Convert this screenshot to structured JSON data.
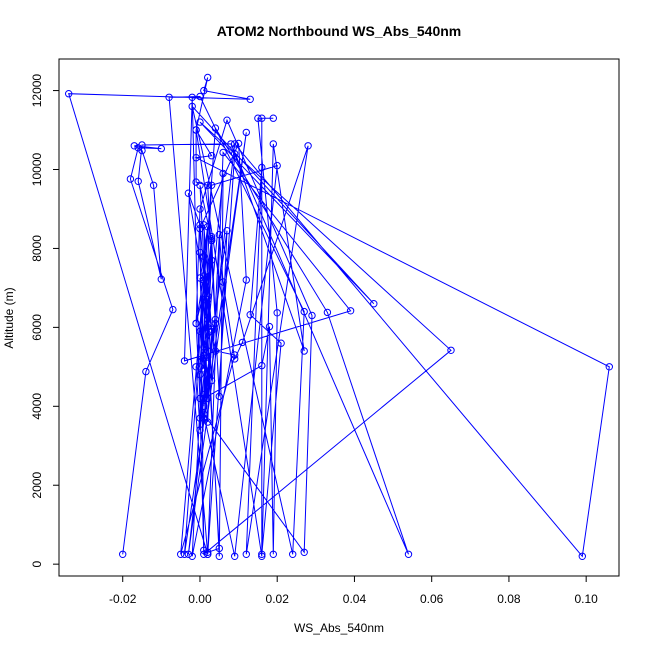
{
  "chart_data": {
    "type": "line",
    "title": "ATOM2 Northbound WS_Abs_540nm",
    "xlabel": "WS_Abs_540nm",
    "ylabel": "Altitude (m)",
    "xlim": [
      -0.0365,
      0.1085
    ],
    "ylim": [
      -300,
      12800
    ],
    "x_ticks": [
      -0.02,
      0.0,
      0.02,
      0.04,
      0.06,
      0.08,
      0.1
    ],
    "x_tick_labels": [
      "-0.02",
      "0.00",
      "0.02",
      "0.04",
      "0.06",
      "0.08",
      "0.10"
    ],
    "y_ticks": [
      0,
      2000,
      4000,
      6000,
      8000,
      10000,
      12000
    ],
    "y_tick_labels": [
      "0",
      "2000",
      "4000",
      "6000",
      "8000",
      "10000",
      "12000"
    ],
    "grid": false,
    "legend": "none",
    "color": "#0000ff",
    "series": [
      {
        "points": [
          [
            -0.02,
            250
          ],
          [
            -0.014,
            4880
          ],
          [
            -0.007,
            6450
          ],
          [
            -0.018,
            9760
          ],
          [
            -0.016,
            10550
          ],
          [
            -0.01,
            10530
          ],
          [
            -0.017,
            10600
          ],
          [
            -0.015,
            10480
          ],
          [
            -0.012,
            9600
          ],
          [
            -0.01,
            7220
          ],
          [
            -0.016,
            9700
          ],
          [
            -0.015,
            10620
          ],
          [
            0.008,
            10650
          ],
          [
            0.054,
            250
          ],
          [
            0.033,
            6380
          ],
          [
            0.004,
            11050
          ],
          [
            -0.004,
            250
          ],
          [
            0.012,
            10940
          ],
          [
            -0.003,
            250
          ],
          [
            0.009,
            10650
          ],
          [
            0.099,
            200
          ],
          [
            0.106,
            5000
          ],
          [
            -0.001,
            10300
          ],
          [
            0.003,
            10350
          ],
          [
            -0.001,
            11000
          ],
          [
            0.016,
            200
          ],
          [
            0.019,
            10650
          ],
          [
            0.027,
            5400
          ],
          [
            0.009,
            10400
          ],
          [
            0.002,
            250
          ],
          [
            0.006,
            10430
          ],
          [
            0.039,
            6420
          ],
          [
            -0.004,
            5150
          ],
          [
            -0.002,
            11830
          ],
          [
            0.001,
            250
          ],
          [
            0.065,
            5420
          ],
          [
            0.0,
            11200
          ],
          [
            0.045,
            6600
          ],
          [
            -0.002,
            11600
          ],
          [
            0.024,
            250
          ],
          [
            0.027,
            6400
          ],
          [
            0.0,
            11850
          ],
          [
            -0.008,
            11830
          ],
          [
            0.002,
            250
          ],
          [
            -0.034,
            11920
          ],
          [
            0.013,
            11780
          ],
          [
            0.001,
            12000
          ],
          [
            0.002,
            12330
          ],
          [
            -0.001,
            11000
          ],
          [
            -0.001,
            9680
          ],
          [
            0.002,
            9600
          ],
          [
            0.005,
            4250
          ],
          [
            0.007,
            8450
          ],
          [
            0.001,
            4200
          ],
          [
            0.016,
            5030
          ],
          [
            0.018,
            6020
          ],
          [
            0.019,
            250
          ],
          [
            0.02,
            6370
          ],
          [
            0.015,
            11300
          ],
          [
            0.019,
            11300
          ],
          [
            0.016,
            11300
          ],
          [
            0.016,
            250
          ],
          [
            0.021,
            5600
          ],
          [
            0.013,
            6320
          ],
          [
            0.016,
            10050
          ],
          [
            0.012,
            250
          ],
          [
            0.028,
            10600
          ],
          [
            0.011,
            5620
          ],
          [
            0.009,
            5200
          ],
          [
            0.006,
            7150
          ],
          [
            0.005,
            8350
          ],
          [
            0.003,
            4650
          ],
          [
            0.002,
            6700
          ],
          [
            0.001,
            5300
          ],
          [
            0.0,
            4800
          ],
          [
            0.001,
            3700
          ],
          [
            0.0,
            4200
          ],
          [
            -0.001,
            6100
          ],
          [
            0.001,
            7300
          ],
          [
            0.002,
            8550
          ],
          [
            0.001,
            7800
          ],
          [
            0.003,
            5900
          ],
          [
            0.002,
            4200
          ],
          [
            0.001,
            6700
          ],
          [
            0.0,
            5000
          ],
          [
            0.003,
            8200
          ],
          [
            0.002,
            6000
          ],
          [
            0.001,
            5500
          ],
          [
            0.0,
            7250
          ],
          [
            0.002,
            3600
          ],
          [
            0.003,
            5950
          ],
          [
            0.001,
            8600
          ],
          [
            0.002,
            5400
          ],
          [
            0.0,
            5900
          ],
          [
            0.003,
            8250
          ],
          [
            0.002,
            6800
          ],
          [
            0.0,
            7900
          ],
          [
            0.001,
            4950
          ],
          [
            0.002,
            5250
          ],
          [
            0.003,
            8300
          ],
          [
            0.004,
            6100
          ],
          [
            -0.001,
            5000
          ],
          [
            0.0,
            3400
          ],
          [
            0.001,
            4300
          ],
          [
            0.002,
            6200
          ],
          [
            0.0,
            8600
          ],
          [
            -0.003,
            9400
          ],
          [
            0.004,
            5400
          ],
          [
            0.009,
            5300
          ],
          [
            -0.005,
            250
          ],
          [
            0.001,
            7200
          ],
          [
            0.005,
            400
          ],
          [
            0.002,
            300
          ],
          [
            0.001,
            350
          ],
          [
            0.0,
            8500
          ],
          [
            0.01,
            10660
          ],
          [
            0.012,
            7200
          ],
          [
            -0.002,
            200
          ],
          [
            0.003,
            9600
          ],
          [
            0.02,
            10100
          ],
          [
            0.009,
            200
          ],
          [
            0.001,
            3800
          ],
          [
            0.027,
            300
          ],
          [
            0.029,
            6300
          ],
          [
            0.007,
            11250
          ],
          [
            0.0,
            9000
          ],
          [
            -0.001,
            6100
          ],
          [
            0.003,
            7700
          ],
          [
            0.001,
            4000
          ],
          [
            0.004,
            6200
          ],
          [
            0.0,
            3700
          ],
          [
            0.006,
            9900
          ],
          [
            0.005,
            200
          ],
          [
            0.0,
            9600
          ],
          [
            0.003,
            8200
          ]
        ]
      }
    ]
  }
}
